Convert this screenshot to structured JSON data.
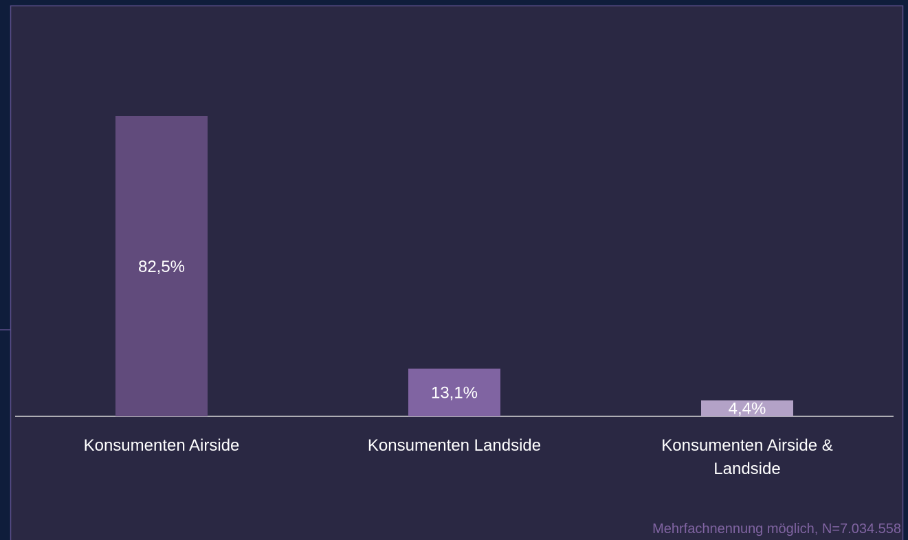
{
  "chart_data": {
    "type": "bar",
    "categories": [
      "Konsumenten Airside",
      "Konsumenten Landside",
      "Konsumenten Airside & Landside"
    ],
    "values": [
      82.5,
      13.1,
      4.4
    ],
    "value_labels": [
      "82,5%",
      "13,1%",
      "4,4%"
    ],
    "colors": [
      "#614b7c",
      "#8064a2",
      "#b3a2c7"
    ],
    "note": "Mehrfachnennung möglich, N=7.034.558"
  }
}
